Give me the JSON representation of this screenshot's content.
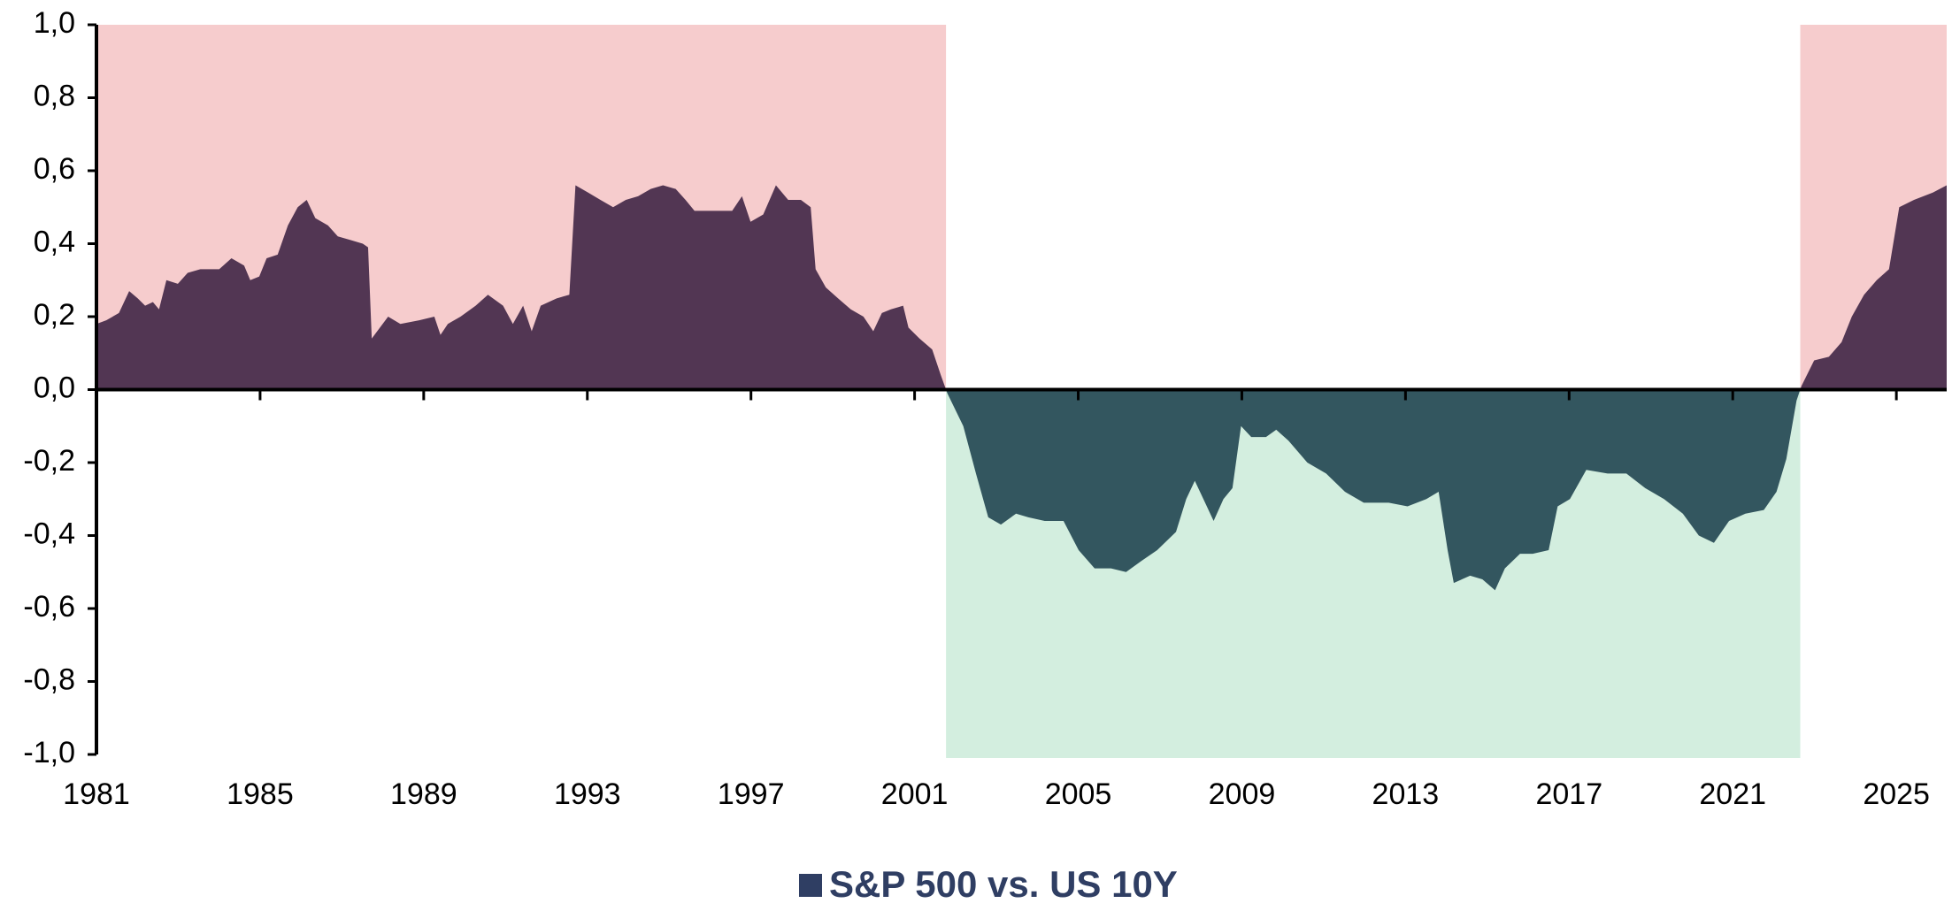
{
  "chart_data": {
    "type": "area",
    "series": [
      {
        "name": "S&P 500 vs. US 10Y",
        "color": "#523653",
        "negative_color": "#33565f",
        "legend_color": "#2f3e63",
        "x": [
          1981.0,
          1981.24,
          1981.55,
          1981.8,
          1982.01,
          1982.19,
          1982.38,
          1982.53,
          1982.71,
          1982.99,
          1983.23,
          1983.54,
          1984.0,
          1984.3,
          1984.61,
          1984.76,
          1984.98,
          1985.16,
          1985.43,
          1985.68,
          1985.92,
          1986.14,
          1986.35,
          1986.66,
          1986.9,
          1987.21,
          1987.51,
          1987.64,
          1987.73,
          1988.13,
          1988.43,
          1988.89,
          1989.26,
          1989.41,
          1989.59,
          1989.9,
          1990.27,
          1990.57,
          1990.94,
          1991.18,
          1991.43,
          1991.64,
          1991.86,
          1992.25,
          1992.56,
          1992.71,
          1993.02,
          1993.32,
          1993.63,
          1993.94,
          1994.24,
          1994.55,
          1994.85,
          1995.16,
          1995.4,
          1995.62,
          1996.08,
          1996.54,
          1996.78,
          1996.99,
          1997.3,
          1997.61,
          1997.91,
          1998.22,
          1998.46,
          1998.58,
          1998.83,
          1999.13,
          1999.44,
          1999.75,
          1999.99,
          2000.2,
          2000.42,
          2000.72,
          2000.85,
          2001.12,
          2001.43,
          2001.64,
          2001.8,
          2002.19,
          2002.5,
          2002.8,
          2003.11,
          2003.48,
          2003.78,
          2004.18,
          2004.64,
          2005.01,
          2005.4,
          2005.8,
          2006.17,
          2006.54,
          2006.93,
          2007.39,
          2007.64,
          2007.85,
          2008.06,
          2008.31,
          2008.55,
          2008.77,
          2008.98,
          2009.23,
          2009.59,
          2009.84,
          2010.14,
          2010.6,
          2011.06,
          2011.52,
          2011.98,
          2012.59,
          2013.05,
          2013.51,
          2013.81,
          2014.03,
          2014.18,
          2014.58,
          2014.88,
          2015.19,
          2015.43,
          2015.8,
          2016.11,
          2016.5,
          2016.72,
          2017.02,
          2017.42,
          2017.94,
          2018.4,
          2018.86,
          2019.32,
          2019.78,
          2020.17,
          2020.54,
          2020.91,
          2021.31,
          2021.76,
          2022.07,
          2022.31,
          2022.56,
          2022.68,
          2022.99,
          2023.35,
          2023.66,
          2023.91,
          2024.21,
          2024.52,
          2024.82,
          2025.07,
          2025.43,
          2025.89,
          2026.23
        ],
        "values": [
          0.18,
          0.19,
          0.21,
          0.27,
          0.25,
          0.23,
          0.24,
          0.22,
          0.3,
          0.29,
          0.32,
          0.33,
          0.33,
          0.36,
          0.34,
          0.3,
          0.31,
          0.36,
          0.37,
          0.45,
          0.5,
          0.52,
          0.47,
          0.45,
          0.42,
          0.41,
          0.4,
          0.39,
          0.14,
          0.2,
          0.18,
          0.19,
          0.2,
          0.15,
          0.18,
          0.2,
          0.23,
          0.26,
          0.23,
          0.18,
          0.23,
          0.16,
          0.23,
          0.25,
          0.26,
          0.56,
          0.54,
          0.52,
          0.5,
          0.52,
          0.53,
          0.55,
          0.56,
          0.55,
          0.52,
          0.49,
          0.49,
          0.49,
          0.53,
          0.46,
          0.48,
          0.56,
          0.52,
          0.52,
          0.5,
          0.33,
          0.28,
          0.25,
          0.22,
          0.2,
          0.16,
          0.21,
          0.22,
          0.23,
          0.17,
          0.14,
          0.11,
          0.04,
          -0.01,
          -0.1,
          -0.23,
          -0.35,
          -0.37,
          -0.34,
          -0.35,
          -0.36,
          -0.36,
          -0.44,
          -0.49,
          -0.49,
          -0.5,
          -0.47,
          -0.44,
          -0.39,
          -0.3,
          -0.25,
          -0.3,
          -0.36,
          -0.3,
          -0.27,
          -0.1,
          -0.13,
          -0.13,
          -0.11,
          -0.14,
          -0.2,
          -0.23,
          -0.28,
          -0.31,
          -0.31,
          -0.32,
          -0.3,
          -0.28,
          -0.44,
          -0.53,
          -0.51,
          -0.52,
          -0.55,
          -0.49,
          -0.45,
          -0.45,
          -0.44,
          -0.32,
          -0.3,
          -0.22,
          -0.23,
          -0.23,
          -0.27,
          -0.3,
          -0.34,
          -0.4,
          -0.42,
          -0.36,
          -0.34,
          -0.33,
          -0.28,
          -0.19,
          -0.03,
          0.01,
          0.08,
          0.09,
          0.13,
          0.2,
          0.26,
          0.3,
          0.33,
          0.5,
          0.52,
          0.54,
          0.56
        ]
      }
    ],
    "positive_shade": "#f6cccd",
    "negative_shade": "#d3eedf",
    "xlim": [
      1981,
      2026.23
    ],
    "xticks": [
      1981,
      1985,
      1989,
      1993,
      1997,
      2001,
      2005,
      2009,
      2013,
      2017,
      2021,
      2025
    ],
    "ylim": [
      -1.0,
      1.0
    ],
    "yticks": [
      {
        "value": -1.0,
        "label": "-1,0"
      },
      {
        "value": -0.8,
        "label": "-0,8"
      },
      {
        "value": -0.6,
        "label": "-0,6"
      },
      {
        "value": -0.4,
        "label": "-0,4"
      },
      {
        "value": -0.2,
        "label": "-0,2"
      },
      {
        "value": 0.0,
        "label": "0,0"
      },
      {
        "value": 0.2,
        "label": "0,2"
      },
      {
        "value": 0.4,
        "label": "0,4"
      },
      {
        "value": 0.6,
        "label": "0,6"
      },
      {
        "value": 0.8,
        "label": "0,8"
      },
      {
        "value": 1.0,
        "label": "1,0"
      }
    ],
    "legend": "bottom"
  }
}
